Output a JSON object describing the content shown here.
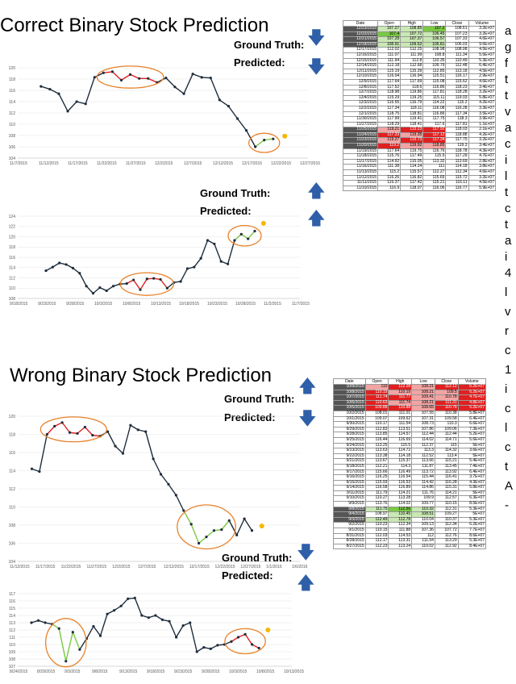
{
  "sections": [
    {
      "title": "Correct Binary Stock Prediction",
      "ground_truth_label": "Ground Truth:",
      "predicted_label": "Predicted:",
      "gt_arrow": "down",
      "pred_arrow": "down"
    },
    {
      "ground_truth_label": "Ground Truth:",
      "predicted_label": "Predicted:",
      "gt_arrow": "up",
      "pred_arrow": "up"
    },
    {
      "title": "Wrong Binary Stock Prediction",
      "ground_truth_label": "Ground Truth:",
      "predicted_label": "Predicted:",
      "gt_arrow": "up",
      "pred_arrow": "down"
    },
    {
      "ground_truth_label": "Ground Truth:",
      "predicted_label": "Predicted:",
      "gt_arrow": "down",
      "pred_arrow": "up"
    }
  ],
  "colors": {
    "line": "#1f2d3d",
    "down_segment": "#e02020",
    "up_segment": "#7ac943",
    "ellipse": "#e8822a",
    "marker": "#f5b800",
    "arrow": "#2f5fa8"
  },
  "chart_data": [
    {
      "type": "line",
      "ylim": [
        104,
        120
      ],
      "yticks": [
        104,
        106,
        108,
        110,
        112,
        114,
        116,
        118,
        120
      ],
      "xticks": [
        "11/7/2015",
        "11/12/2015",
        "11/17/2015",
        "11/22/2015",
        "11/27/2015",
        "12/2/2015",
        "12/7/2015",
        "12/12/2015",
        "12/17/2015",
        "12/22/2015",
        "12/27/2015"
      ],
      "values": [
        116.7,
        116.2,
        115.4,
        112.3,
        114.0,
        113.6,
        118.3,
        119.1,
        119.3,
        117.8,
        118.8,
        118.1,
        118.1,
        117.4,
        118.2,
        116.6,
        115.4,
        118.9,
        118.3,
        118.2,
        114.3,
        113.2,
        111.0,
        108.9,
        106.0,
        107.2,
        107.4
      ],
      "down_range": [
        7,
        13
      ],
      "up_range": [
        24,
        26
      ],
      "marker": 107.9
    },
    {
      "type": "line",
      "ylim": [
        108,
        124
      ],
      "yticks": [
        108,
        110,
        112,
        114,
        116,
        118,
        120,
        122,
        124
      ],
      "xticks": [
        "9/18/2015",
        "9/23/2015",
        "9/28/2015",
        "10/3/2015",
        "10/8/2015",
        "10/13/2015",
        "10/18/2015",
        "10/23/2015",
        "10/28/2015",
        "11/2/2015",
        "11/7/2015"
      ],
      "values": [
        113.4,
        114.1,
        114.9,
        114.6,
        113.9,
        112.9,
        110.4,
        109.0,
        110.1,
        109.5,
        110.4,
        110.8,
        110.9,
        111.6,
        109.7,
        111.8,
        111.9,
        111.7,
        110.0,
        111.1,
        111.3,
        113.8,
        114.1,
        115.8,
        119.3,
        118.6,
        115.2,
        114.7,
        119.3,
        120.5,
        119.6,
        121.1
      ],
      "down_range": [
        12,
        18
      ],
      "up_range": [
        28,
        31
      ],
      "marker": 122.6
    },
    {
      "type": "line",
      "ylim": [
        104,
        120
      ],
      "yticks": [
        104,
        106,
        108,
        110,
        112,
        114,
        116,
        118,
        120
      ],
      "xticks": [
        "11/12/2015",
        "11/17/2015",
        "11/22/2015",
        "11/27/2015",
        "12/2/2015",
        "12/7/2015",
        "12/12/2015",
        "12/17/2015",
        "12/22/2015",
        "12/27/2015",
        "1/1/2016",
        "1/6/2016"
      ],
      "values": [
        114.2,
        113.9,
        118.0,
        118.9,
        119.3,
        118.2,
        118.1,
        118.8,
        117.9,
        117.8,
        118.3,
        116.7,
        115.9,
        119.0,
        118.5,
        118.3,
        115.3,
        113.6,
        112.5,
        111.3,
        109.6,
        108.1,
        106.0,
        106.7,
        107.4,
        107.5,
        108.5,
        106.9,
        108.7,
        107.4
      ],
      "down_range": [
        2,
        9
      ],
      "up_range": [
        20,
        26
      ],
      "marker": 107.9
    },
    {
      "type": "line",
      "ylim": [
        107,
        117
      ],
      "yticks": [
        107,
        108,
        109,
        110,
        111,
        112,
        113,
        114,
        115,
        116,
        117
      ],
      "xticks": [
        "8/24/2015",
        "8/29/2015",
        "9/3/2015",
        "9/8/2015",
        "9/13/2015",
        "9/18/2015",
        "9/23/2015",
        "9/28/2015",
        "10/3/2015",
        "10/8/2015",
        "10/13/2015"
      ],
      "values": [
        113.0,
        113.3,
        113.0,
        112.8,
        112.2,
        107.7,
        111.7,
        109.3,
        110.8,
        112.5,
        111.2,
        114.2,
        114.7,
        115.3,
        116.3,
        116.4,
        114.0,
        113.7,
        114.0,
        113.4,
        113.2,
        111.0,
        112.6,
        113.0,
        109.0,
        109.6,
        109.4,
        109.9,
        110.0,
        110.4,
        111.0,
        111.4,
        110.0,
        109.5
      ],
      "down_range": [
        29,
        33
      ],
      "up_range": [
        3,
        7
      ],
      "marker": 112.0
    }
  ],
  "tables": [
    {
      "headers": [
        "Date",
        "Open",
        "High",
        "Low",
        "Close",
        "Volume"
      ],
      "rows": [
        [
          "12/23/2015",
          "107.27",
          "108.85",
          "107.2",
          "108.61",
          "3.2E+07"
        ],
        [
          "12/22/2015",
          "107.4",
          "107.72",
          "106.45",
          "107.23",
          "3.2E+07"
        ],
        [
          "12/21/2015",
          "107.28",
          "107.37",
          "106.57",
          "107.33",
          "4.6E+07"
        ],
        [
          "12/18/2015",
          "108.91",
          "109.52",
          "105.81",
          "106.03",
          "9.6E+07"
        ],
        [
          "12/17/2015",
          "112.02",
          "112.25",
          "108.98",
          "108.98",
          "4.5E+07"
        ],
        [
          "12/16/2015",
          "111.07",
          "111.99",
          "108.8",
          "111.34",
          "5.6E+07"
        ],
        [
          "12/15/2015",
          "111.94",
          "112.8",
          "110.35",
          "110.49",
          "5.3E+07"
        ],
        [
          "12/14/2015",
          "112.18",
          "112.68",
          "109.79",
          "112.48",
          "6.4E+07"
        ],
        [
          "12/11/2015",
          "115.19",
          "115.39",
          "112.85",
          "113.18",
          "4.5E+07"
        ],
        [
          "12/10/2015",
          "116.04",
          "116.94",
          "115.51",
          "116.17",
          "2.9E+07"
        ],
        [
          "12/9/2015",
          "117.64",
          "117.69",
          "115.08",
          "115.62",
          "4.6E+07"
        ],
        [
          "12/8/2015",
          "117.52",
          "118.6",
          "116.86",
          "118.23",
          "3.4E+07"
        ],
        [
          "12/7/2015",
          "118.98",
          "119.86",
          "117.81",
          "118.28",
          "3.2E+07"
        ],
        [
          "12/4/2015",
          "115.29",
          "119.25",
          "115.11",
          "119.03",
          "5.8E+07"
        ],
        [
          "12/3/2015",
          "116.55",
          "116.79",
          "114.22",
          "115.2",
          "4.2E+07"
        ],
        [
          "12/2/2015",
          "117.34",
          "118.11",
          "116.08",
          "116.28",
          "3.3E+07"
        ],
        [
          "12/1/2015",
          "118.75",
          "118.81",
          "116.86",
          "117.34",
          "3.5E+07"
        ],
        [
          "11/30/2015",
          "117.99",
          "119.41",
          "117.75",
          "118.3",
          "3.9E+07"
        ],
        [
          "11/27/2015",
          "118.29",
          "118.41",
          "117.6",
          "117.81",
          "1.1E+07"
        ],
        [
          "11/25/2015",
          "119.21",
          "119.23",
          "117.92",
          "118.03",
          "2.1E+07"
        ],
        [
          "11/24/2015",
          "117.33",
          "119.35",
          "117.12",
          "118.88",
          "4.2E+07"
        ],
        [
          "11/23/2015",
          "119.27",
          "119.73",
          "117.34",
          "117.75",
          "3.2E+07"
        ],
        [
          "11/20/2015",
          "119.2",
          "119.92",
          "118.85",
          "119.3",
          "3.4E+07"
        ],
        [
          "11/19/2015",
          "117.64",
          "119.75",
          "116.76",
          "118.78",
          "4.3E+07"
        ],
        [
          "11/18/2015",
          "115.76",
          "117.49",
          "115.5",
          "117.29",
          "4.7E+07"
        ],
        [
          "11/17/2015",
          "114.92",
          "115.05",
          "113.32",
          "113.69",
          "2.8E+07"
        ],
        [
          "11/16/2015",
          "111.38",
          "114.24",
          "111",
          "114.18",
          "3.8E+07"
        ],
        [
          "11/13/2015",
          "115.2",
          "115.57",
          "112.27",
          "112.34",
          "4.6E+07"
        ],
        [
          "11/12/2015",
          "116.26",
          "116.82",
          "115.65",
          "115.72",
          "3.2E+07"
        ],
        [
          "11/11/2015",
          "116.37",
          "117.42",
          "115.21",
          "116.11",
          "4.5E+07"
        ],
        [
          "11/10/2015",
          "116.9",
          "118.07",
          "116.06",
          "116.77",
          "5.9E+07"
        ]
      ]
    },
    {
      "headers": [
        "Date",
        "Open",
        "High",
        "Low",
        "Close",
        "Volume"
      ],
      "rows": [
        [
          "10/9/2015",
          "110",
          "112.28",
          "108.21",
          "112.12",
          "6.2E+07"
        ],
        [
          "10/8/2015",
          "110.19",
          "110.19",
          "108.21",
          "109.5",
          "6.2E+07"
        ],
        [
          "10/7/2015",
          "111.74",
          "111.77",
          "109.41",
          "110.78",
          "4.7E+07"
        ],
        [
          "10/6/2015",
          "110.63",
          "111.74",
          "108.21",
          "111.31",
          "4.8E+07"
        ],
        [
          "10/5/2015",
          "109.88",
          "110.88",
          "108.65",
          "110.78",
          "5.2E+07"
        ],
        [
          "10/2/2015",
          "108.01",
          "111.01",
          "107.55",
          "110.38",
          "5.8E+07"
        ],
        [
          "10/1/2015",
          "109.07",
          "109.62",
          "107.31",
          "109.58",
          "6.4E+07"
        ],
        [
          "9/30/2015",
          "110.17",
          "111.54",
          "108.73",
          "110.3",
          "6.6E+07"
        ],
        [
          "9/29/2015",
          "112.83",
          "113.51",
          "107.86",
          "109.06",
          "7.3E+07"
        ],
        [
          "9/28/2015",
          "113.85",
          "114.57",
          "112.44",
          "112.44",
          "5.2E+07"
        ],
        [
          "9/25/2015",
          "116.44",
          "116.69",
          "114.02",
          "114.71",
          "5.6E+07"
        ],
        [
          "9/24/2015",
          "113.25",
          "115.5",
          "112.37",
          "115",
          "5E+07"
        ],
        [
          "9/23/2015",
          "113.63",
          "114.72",
          "113.3",
          "114.32",
          "3.6E+07"
        ],
        [
          "9/22/2015",
          "113.38",
          "114.18",
          "112.52",
          "113.4",
          "5E+07"
        ],
        [
          "9/21/2015",
          "113.67",
          "115.37",
          "113.66",
          "115.21",
          "5.4E+07"
        ],
        [
          "9/18/2015",
          "112.21",
          "114.3",
          "111.87",
          "113.45",
          "7.4E+07"
        ],
        [
          "9/17/2015",
          "115.66",
          "116.49",
          "113.72",
          "113.92",
          "6.4E+07"
        ],
        [
          "9/16/2015",
          "116.25",
          "116.54",
          "115.44",
          "116.41",
          "3.7E+07"
        ],
        [
          "9/15/2015",
          "115.93",
          "116.53",
          "114.42",
          "116.28",
          "4.3E+07"
        ],
        [
          "9/14/2015",
          "116.58",
          "116.89",
          "114.86",
          "115.31",
          "5.8E+07"
        ],
        [
          "9/11/2015",
          "111.79",
          "114.21",
          "111.76",
          "114.21",
          "5E+07"
        ],
        [
          "9/10/2015",
          "110.27",
          "113.28",
          "109.9",
          "112.57",
          "6.3E+07"
        ],
        [
          "9/9/2015",
          "113.76",
          "114.02",
          "109.77",
          "110.15",
          "8.5E+07"
        ],
        [
          "9/8/2015",
          "111.75",
          "112.56",
          "110.32",
          "112.31",
          "5.3E+07"
        ],
        [
          "9/4/2015",
          "108.97",
          "110.45",
          "108.51",
          "109.27",
          "5E+07"
        ],
        [
          "9/3/2015",
          "112.49",
          "112.78",
          "110.04",
          "110.37",
          "5.3E+07"
        ],
        [
          "9/2/2015",
          "110.23",
          "112.34",
          "109.13",
          "112.34",
          "6.2E+07"
        ],
        [
          "9/1/2015",
          "110.15",
          "111.88",
          "107.36",
          "107.72",
          "7.7E+07"
        ],
        [
          "8/31/2015",
          "112.03",
          "114.53",
          "112",
          "112.76",
          "8.6E+07"
        ],
        [
          "8/28/2015",
          "112.17",
          "113.31",
          "111.54",
          "113.29",
          "5.3E+07"
        ],
        [
          "8/27/2015",
          "112.23",
          "113.24",
          "110.02",
          "112.92",
          "8.4E+07"
        ]
      ]
    }
  ],
  "side_text": [
    "a",
    "g",
    "f",
    "t",
    "t",
    "v",
    "a",
    "c",
    "i",
    "l",
    "t",
    "c",
    "t",
    "a",
    "i",
    "4",
    "l",
    "v",
    "r",
    "c",
    "1",
    "i",
    "c",
    "l",
    "c",
    "t",
    "A",
    "-"
  ]
}
